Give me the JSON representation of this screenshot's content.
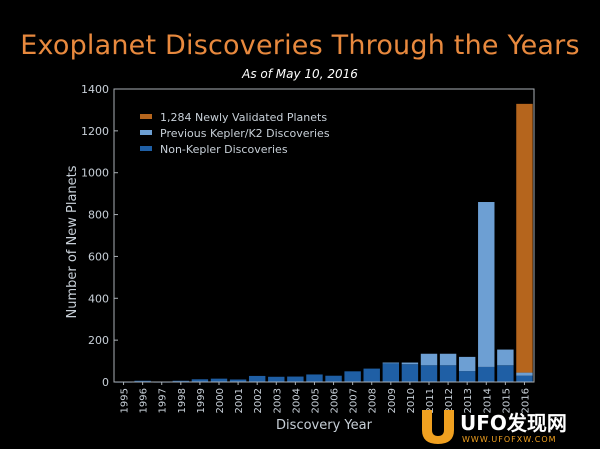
{
  "header": {
    "title": "Exoplanet Discoveries Through the Years",
    "subtitle": "As of May 10, 2016"
  },
  "watermark": {
    "brand": "UFO发现网",
    "url": "WWW.UFOFXW.COM"
  },
  "colors": {
    "background": "#000000",
    "title": "#e8893e",
    "axis": "#aab0b6",
    "text": "#c8d0d8",
    "newly_validated": "#b5651d",
    "kepler_k2": "#6d9fd3",
    "non_kepler": "#1f5fa5"
  },
  "chart_data": {
    "type": "bar",
    "stacked": true,
    "title": "Exoplanet Discoveries Through the Years",
    "subtitle": "As of May 10, 2016",
    "xlabel": "Discovery Year",
    "ylabel": "Number of New Planets",
    "ylim": [
      0,
      1400
    ],
    "yticks": [
      0,
      200,
      400,
      600,
      800,
      1000,
      1200,
      1400
    ],
    "grid": false,
    "legend_position": "top-left",
    "categories": [
      "1995",
      "1996",
      "1997",
      "1998",
      "1999",
      "2000",
      "2001",
      "2002",
      "2003",
      "2004",
      "2005",
      "2006",
      "2007",
      "2008",
      "2009",
      "2010",
      "2011",
      "2012",
      "2013",
      "2014",
      "2015",
      "2016"
    ],
    "series": [
      {
        "name": "Non-Kepler Discoveries",
        "color": "#1f5fa5",
        "values": [
          1,
          6,
          1,
          6,
          13,
          16,
          12,
          29,
          25,
          26,
          36,
          30,
          51,
          64,
          90,
          85,
          80,
          80,
          52,
          72,
          80,
          30
        ]
      },
      {
        "name": "Previous Kepler/K2 Discoveries",
        "color": "#6d9fd3",
        "values": [
          0,
          0,
          0,
          0,
          0,
          0,
          0,
          0,
          0,
          0,
          0,
          0,
          0,
          0,
          3,
          8,
          55,
          55,
          68,
          788,
          75,
          15
        ]
      },
      {
        "name": "1,284 Newly Validated Planets",
        "color": "#b5651d",
        "values": [
          0,
          0,
          0,
          0,
          0,
          0,
          0,
          0,
          0,
          0,
          0,
          0,
          0,
          0,
          0,
          0,
          0,
          0,
          0,
          0,
          0,
          1284
        ]
      }
    ]
  }
}
